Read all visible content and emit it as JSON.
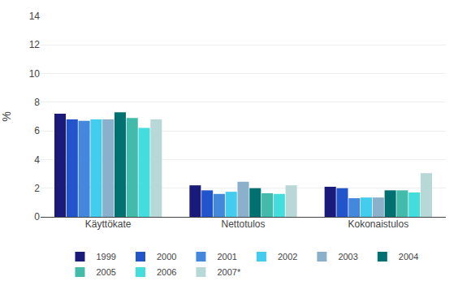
{
  "chart_data": {
    "type": "bar",
    "y_label": "%",
    "categories": [
      "Käyttökate",
      "Nettotulos",
      "Kokonaistulos"
    ],
    "series": [
      {
        "name": "1999",
        "color": "#1a1a7a",
        "values": [
          7.2,
          2.2,
          2.1
        ]
      },
      {
        "name": "2000",
        "color": "#2255cc",
        "values": [
          6.8,
          1.85,
          2.0
        ]
      },
      {
        "name": "2001",
        "color": "#4488dd",
        "values": [
          6.7,
          1.6,
          1.3
        ]
      },
      {
        "name": "2002",
        "color": "#44ccee",
        "values": [
          6.8,
          1.75,
          1.35
        ]
      },
      {
        "name": "2003",
        "color": "#8ab0cc",
        "values": [
          6.8,
          2.45,
          1.35
        ]
      },
      {
        "name": "2004",
        "color": "#007070",
        "values": [
          7.3,
          2.0,
          1.85
        ]
      },
      {
        "name": "2005",
        "color": "#44bbaa",
        "values": [
          6.9,
          1.65,
          1.85
        ]
      },
      {
        "name": "2006",
        "color": "#44dddd",
        "values": [
          6.2,
          1.6,
          1.7
        ]
      },
      {
        "name": "2007*",
        "color": "#b8d8d8",
        "values": [
          6.8,
          2.2,
          3.05
        ]
      }
    ],
    "ylim": [
      0,
      14
    ],
    "yticks": [
      0,
      2,
      4,
      6,
      8,
      10,
      12,
      14
    ],
    "grid": true,
    "legend": "bottom"
  }
}
